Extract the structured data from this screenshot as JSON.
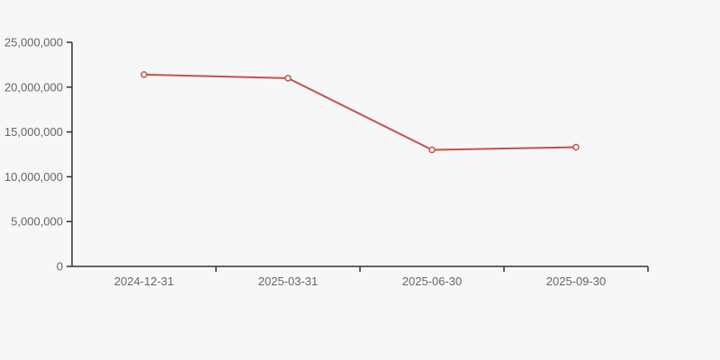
{
  "page": {
    "background_color": "#f7f7f7"
  },
  "chart_data": {
    "type": "line",
    "title": "",
    "xlabel": "",
    "ylabel": "",
    "categories": [
      "2024-12-31",
      "2025-03-31",
      "2025-06-30",
      "2025-09-30"
    ],
    "series": [
      {
        "name": "series-1",
        "values": [
          21400000,
          21000000,
          13000000,
          13300000
        ]
      }
    ],
    "ylim": [
      0,
      25000000
    ],
    "y_tick_step": 5000000,
    "y_tick_labels": [
      "0",
      "5,000,000",
      "10,000,000",
      "15,000,000",
      "20,000,000",
      "25,000,000"
    ],
    "grid": false,
    "legend_position": "none",
    "line_color": "#c5504b",
    "marker_style": "hollow-circle",
    "marker_fill_color": "#ffffff",
    "axis_color": "#333333",
    "tick_label_color": "#666666"
  }
}
